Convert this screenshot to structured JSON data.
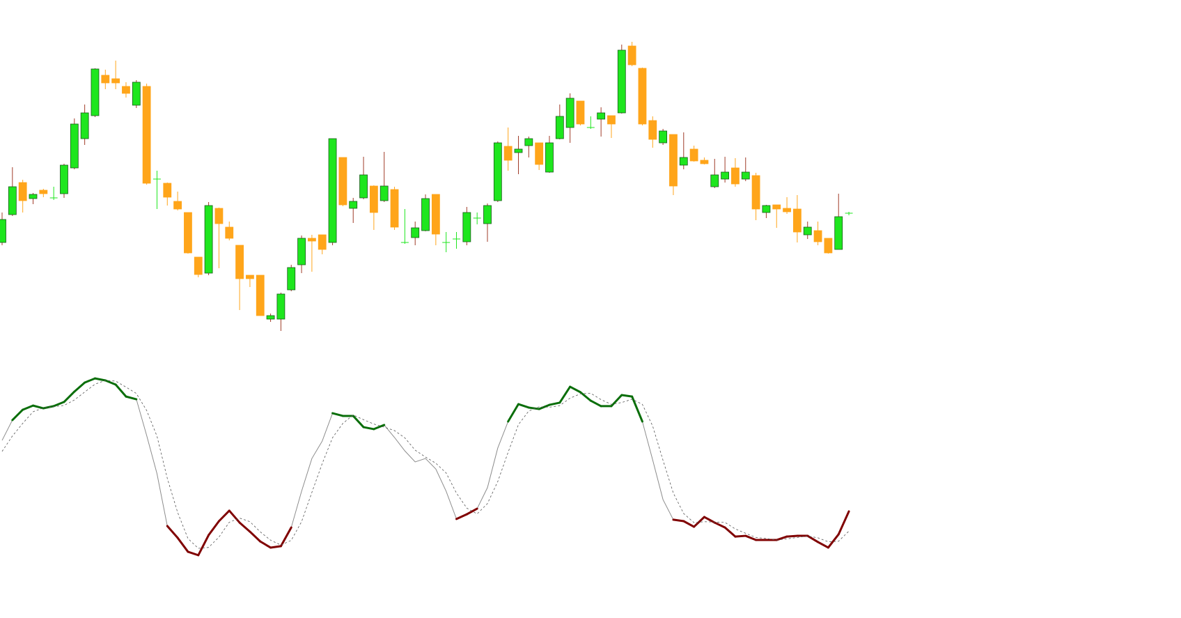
{
  "chart_data": [
    {
      "type": "candlestick",
      "open": [
        132,
        172,
        218,
        195,
        207,
        196,
        202,
        239,
        281,
        314,
        372,
        367,
        356,
        329,
        356,
        223,
        217,
        191,
        175,
        111,
        88,
        181,
        154,
        128,
        85,
        85,
        22,
        22,
        64,
        100,
        138,
        143,
        132,
        254,
        181,
        196,
        213,
        192,
        208,
        132,
        139,
        149,
        201,
        132,
        137,
        133,
        167,
        159,
        192,
        270,
        261,
        271,
        275,
        233,
        281,
        297,
        335,
        297,
        309,
        314,
        318,
        414,
        382,
        307,
        275,
        287,
        243,
        266,
        250,
        212,
        223,
        239,
        223,
        228,
        175,
        186,
        181,
        180,
        143,
        149,
        138,
        122,
        174
      ],
      "high": [
        175,
        240,
        222,
        203,
        209,
        212,
        245,
        310,
        330,
        382,
        380,
        393,
        362,
        365,
        360,
        235,
        218,
        205,
        175,
        111,
        190,
        182,
        162,
        128,
        85,
        85,
        30,
        60,
        100,
        142,
        143,
        143,
        281,
        254,
        196,
        255,
        214,
        262,
        212,
        180,
        162,
        201,
        201,
        147,
        147,
        183,
        175,
        188,
        277,
        297,
        285,
        284,
        275,
        285,
        330,
        346,
        335,
        313,
        326,
        314,
        416,
        420,
        383,
        313,
        295,
        287,
        290,
        271,
        254,
        252,
        255,
        253,
        254,
        232,
        186,
        186,
        197,
        200,
        162,
        162,
        138,
        202,
        176
      ],
      "low": [
        128,
        170,
        175,
        187,
        197,
        193,
        196,
        237,
        272,
        312,
        352,
        352,
        340,
        325,
        215,
        180,
        185,
        178,
        116,
        82,
        85,
        95,
        135,
        35,
        68,
        27,
        18,
        5,
        62,
        88,
        90,
        115,
        128,
        184,
        160,
        194,
        150,
        190,
        150,
        130,
        128,
        148,
        128,
        118,
        123,
        128,
        158,
        133,
        190,
        235,
        230,
        254,
        236,
        232,
        280,
        275,
        300,
        295,
        284,
        282,
        317,
        385,
        300,
        268,
        272,
        200,
        237,
        248,
        244,
        210,
        218,
        212,
        220,
        164,
        167,
        153,
        173,
        132,
        137,
        128,
        116,
        122,
        171
      ],
      "close": [
        165,
        212,
        192,
        201,
        202,
        196,
        243,
        302,
        318,
        381,
        361,
        361,
        346,
        362,
        217,
        223,
        197,
        180,
        117,
        86,
        185,
        159,
        138,
        80,
        80,
        27,
        27,
        58,
        96,
        138,
        134,
        122,
        281,
        186,
        191,
        229,
        175,
        213,
        154,
        132,
        153,
        195,
        144,
        132,
        137,
        175,
        167,
        185,
        275,
        250,
        266,
        281,
        244,
        275,
        313,
        339,
        302,
        297,
        318,
        302,
        408,
        387,
        302,
        280,
        292,
        213,
        254,
        249,
        245,
        229,
        233,
        216,
        233,
        180,
        185,
        180,
        176,
        147,
        154,
        133,
        117,
        169,
        174
      ],
      "up_color": "#1ee61e",
      "down_color": "#ffa51a",
      "ylim": [
        0,
        480
      ]
    },
    {
      "type": "line",
      "series": [
        {
          "color": "#8c8c8c",
          "values": [
            64.6,
            75.8,
            81.5,
            83.8,
            82.3,
            83.5,
            85.8,
            91.5,
            96.5,
            98.8,
            97.7,
            95.4,
            88.8,
            87.3,
            67.3,
            46.2,
            17.3,
            10.8,
            3.1,
            1.2,
            12.3,
            20.0,
            25.8,
            19.2,
            14.2,
            8.8,
            5.4,
            6.2,
            16.5,
            36.5,
            54.6,
            64.2,
            79.6,
            78.1,
            78.1,
            71.9,
            70.8,
            73.1,
            66.2,
            58.8,
            52.7,
            54.6,
            48.8,
            36.5,
            21.2,
            23.8,
            26.9,
            38.5,
            60.4,
            75.0,
            84.6,
            82.7,
            81.9,
            84.2,
            85.4,
            94.2,
            91.2,
            86.5,
            83.5,
            83.5,
            89.6,
            88.8,
            75.0,
            53.8,
            31.9,
            20.8,
            20.0,
            16.9,
            22.3,
            19.2,
            16.5,
            11.5,
            11.9,
            9.6,
            9.6,
            9.6,
            11.5,
            11.9,
            11.9,
            8.5,
            5.4,
            12.7,
            25.4
          ]
        },
        {
          "color": "#555555",
          "dashed": true,
          "values": [
            58.5,
            67.0,
            74.0,
            80.4,
            82.5,
            83.2,
            83.9,
            86.9,
            91.3,
            95.6,
            97.7,
            97.3,
            94.0,
            90.5,
            81.1,
            66.9,
            43.6,
            24.8,
            10.4,
            5.0,
            5.5,
            11.2,
            19.4,
            21.7,
            19.7,
            14.1,
            9.5,
            6.8,
            9.4,
            19.7,
            35.9,
            51.8,
            66.1,
            74.0,
            78.6,
            76.0,
            73.6,
            71.9,
            70.0,
            66.0,
            59.2,
            55.4,
            52.0,
            46.6,
            35.5,
            27.2,
            24.0,
            29.7,
            41.9,
            58.0,
            73.3,
            80.8,
            83.1,
            82.9,
            83.8,
            87.9,
            90.3,
            90.6,
            87.1,
            84.5,
            85.5,
            87.3,
            84.5,
            72.5,
            53.6,
            35.5,
            24.2,
            19.2,
            19.7,
            19.5,
            19.3,
            15.7,
            13.3,
            11.0,
            10.4,
            9.6,
            10.2,
            11.0,
            11.8,
            10.8,
            8.6,
            8.9,
            14.5
          ]
        }
      ],
      "levels": [
        30,
        70
      ],
      "high_color": "#0a6e0a",
      "low_color": "#800000",
      "ylim": [
        0,
        100
      ]
    }
  ]
}
